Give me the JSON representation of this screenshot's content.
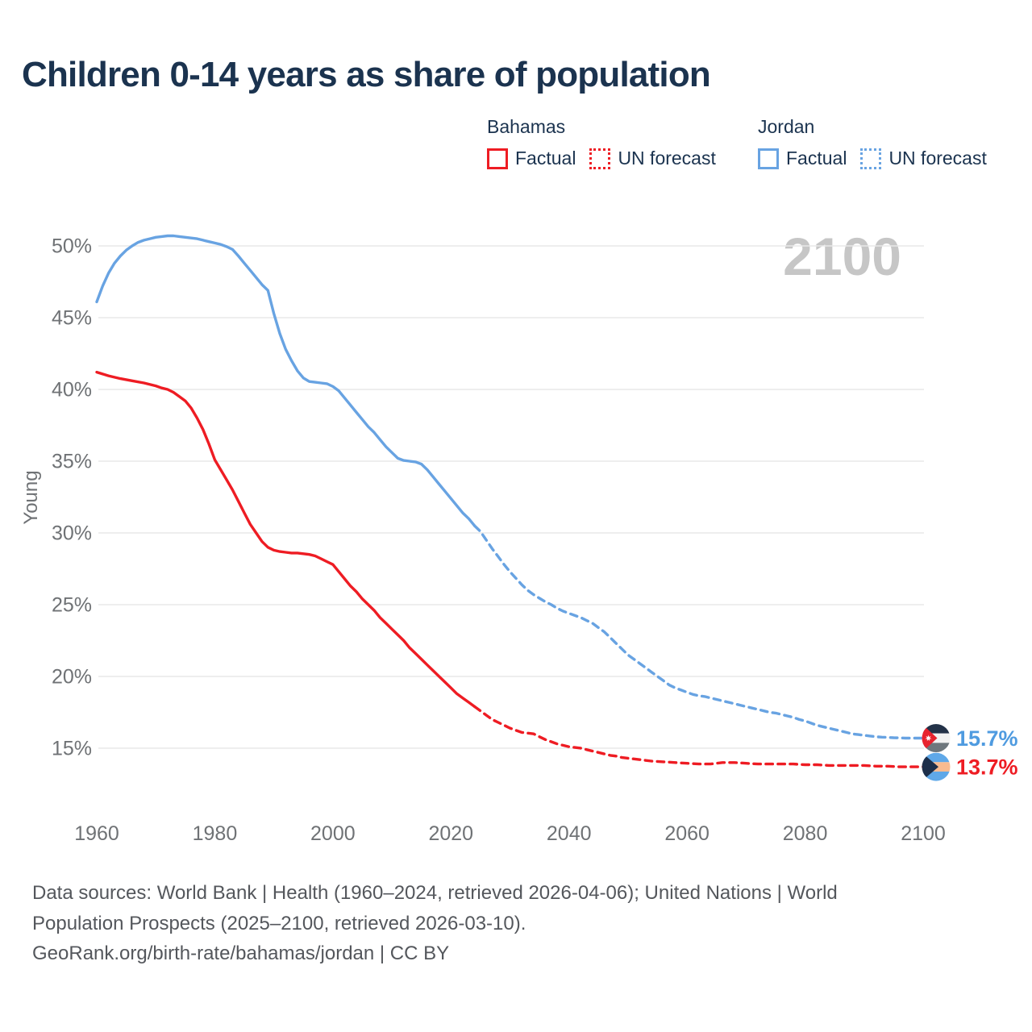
{
  "title": "Children 0-14 years as share of population",
  "colors": {
    "bahamas": "#ee1c23",
    "jordan": "#68a3e2",
    "jordan_label": "#4f9be0",
    "title_text": "#1b334f",
    "axis_text": "#6f7275",
    "grid": "#e9e9e9",
    "watermark": "#c6c6c6",
    "footer_text": "#54575c"
  },
  "legend": {
    "groups": [
      {
        "name": "Bahamas",
        "series_color": "bahamas",
        "items": [
          {
            "label": "Factual",
            "style": "solid"
          },
          {
            "label": "UN forecast",
            "style": "dotted"
          }
        ]
      },
      {
        "name": "Jordan",
        "series_color": "jordan",
        "items": [
          {
            "label": "Factual",
            "style": "solid"
          },
          {
            "label": "UN forecast",
            "style": "dotted"
          }
        ]
      }
    ]
  },
  "footer": {
    "line1": "Data sources: World Bank | Health (1960–2024, retrieved 2026-04-06); United Nations | World",
    "line2": "Population Prospects (2025–2100, retrieved 2026-03-10).",
    "line3": "GeoRank.org/birth-rate/bahamas/jordan | CC BY"
  },
  "chart_data": {
    "type": "line",
    "title": "Children 0-14 years as share of population",
    "xlabel": "",
    "ylabel": "Young",
    "watermark": "2100",
    "grid": true,
    "legend_position": "top-right",
    "x_range": [
      1960,
      2100
    ],
    "y_range": [
      15,
      50
    ],
    "x_ticks": [
      1960,
      1980,
      2000,
      2020,
      2040,
      2060,
      2080,
      2100
    ],
    "y_ticks": [
      {
        "value": 15,
        "label": "15%"
      },
      {
        "value": 20,
        "label": "20%"
      },
      {
        "value": 25,
        "label": "25%"
      },
      {
        "value": 30,
        "label": "30%"
      },
      {
        "value": 35,
        "label": "35%"
      },
      {
        "value": 40,
        "label": "40%"
      },
      {
        "value": 45,
        "label": "45%"
      },
      {
        "value": 50,
        "label": "50%"
      }
    ],
    "series": [
      {
        "id": "jordan-factual",
        "country": "Jordan",
        "kind": "Factual",
        "dashed": false,
        "color": "#68a3e2",
        "points": [
          [
            1960,
            46.1
          ],
          [
            1961,
            47.2
          ],
          [
            1962,
            48.1
          ],
          [
            1963,
            48.8
          ],
          [
            1964,
            49.3
          ],
          [
            1965,
            49.7
          ],
          [
            1966,
            50.0
          ],
          [
            1967,
            50.25
          ],
          [
            1968,
            50.4
          ],
          [
            1969,
            50.5
          ],
          [
            1970,
            50.6
          ],
          [
            1971,
            50.65
          ],
          [
            1972,
            50.7
          ],
          [
            1973,
            50.7
          ],
          [
            1974,
            50.65
          ],
          [
            1975,
            50.6
          ],
          [
            1976,
            50.55
          ],
          [
            1977,
            50.5
          ],
          [
            1978,
            50.4
          ],
          [
            1979,
            50.3
          ],
          [
            1980,
            50.2
          ],
          [
            1981,
            50.1
          ],
          [
            1982,
            49.95
          ],
          [
            1983,
            49.75
          ],
          [
            1984,
            49.3
          ],
          [
            1985,
            48.8
          ],
          [
            1986,
            48.3
          ],
          [
            1987,
            47.8
          ],
          [
            1988,
            47.3
          ],
          [
            1989,
            46.9
          ],
          [
            1990,
            45.3
          ],
          [
            1991,
            43.9
          ],
          [
            1992,
            42.8
          ],
          [
            1993,
            42.0
          ],
          [
            1994,
            41.3
          ],
          [
            1995,
            40.8
          ],
          [
            1996,
            40.55
          ],
          [
            1997,
            40.5
          ],
          [
            1998,
            40.45
          ],
          [
            1999,
            40.4
          ],
          [
            2000,
            40.2
          ],
          [
            2001,
            39.9
          ],
          [
            2002,
            39.4
          ],
          [
            2003,
            38.9
          ],
          [
            2004,
            38.4
          ],
          [
            2005,
            37.9
          ],
          [
            2006,
            37.4
          ],
          [
            2007,
            37.0
          ],
          [
            2008,
            36.5
          ],
          [
            2009,
            36.0
          ],
          [
            2010,
            35.6
          ],
          [
            2011,
            35.2
          ],
          [
            2012,
            35.05
          ],
          [
            2013,
            35.0
          ],
          [
            2014,
            34.95
          ],
          [
            2015,
            34.8
          ],
          [
            2016,
            34.4
          ],
          [
            2017,
            33.9
          ],
          [
            2018,
            33.4
          ],
          [
            2019,
            32.9
          ],
          [
            2020,
            32.4
          ],
          [
            2021,
            31.9
          ],
          [
            2022,
            31.4
          ],
          [
            2023,
            31.0
          ],
          [
            2024,
            30.5
          ]
        ]
      },
      {
        "id": "jordan-forecast",
        "country": "Jordan",
        "kind": "UN forecast",
        "dashed": true,
        "color": "#68a3e2",
        "points": [
          [
            2024,
            30.5
          ],
          [
            2025,
            30.1
          ],
          [
            2026,
            29.5
          ],
          [
            2027,
            28.9
          ],
          [
            2028,
            28.35
          ],
          [
            2029,
            27.8
          ],
          [
            2030,
            27.3
          ],
          [
            2031,
            26.85
          ],
          [
            2032,
            26.4
          ],
          [
            2033,
            26.0
          ],
          [
            2034,
            25.7
          ],
          [
            2035,
            25.45
          ],
          [
            2036,
            25.2
          ],
          [
            2037,
            25.0
          ],
          [
            2038,
            24.75
          ],
          [
            2039,
            24.55
          ],
          [
            2040,
            24.4
          ],
          [
            2041,
            24.25
          ],
          [
            2042,
            24.1
          ],
          [
            2043,
            23.9
          ],
          [
            2044,
            23.7
          ],
          [
            2045,
            23.4
          ],
          [
            2046,
            23.1
          ],
          [
            2047,
            22.7
          ],
          [
            2048,
            22.3
          ],
          [
            2049,
            21.9
          ],
          [
            2050,
            21.5
          ],
          [
            2051,
            21.2
          ],
          [
            2052,
            20.9
          ],
          [
            2053,
            20.6
          ],
          [
            2054,
            20.3
          ],
          [
            2055,
            20.0
          ],
          [
            2056,
            19.7
          ],
          [
            2057,
            19.4
          ],
          [
            2058,
            19.2
          ],
          [
            2059,
            19.05
          ],
          [
            2060,
            18.9
          ],
          [
            2061,
            18.75
          ],
          [
            2062,
            18.65
          ],
          [
            2063,
            18.6
          ],
          [
            2064,
            18.5
          ],
          [
            2065,
            18.4
          ],
          [
            2066,
            18.3
          ],
          [
            2067,
            18.2
          ],
          [
            2068,
            18.1
          ],
          [
            2069,
            18.0
          ],
          [
            2070,
            17.9
          ],
          [
            2071,
            17.8
          ],
          [
            2072,
            17.7
          ],
          [
            2073,
            17.6
          ],
          [
            2074,
            17.5
          ],
          [
            2075,
            17.45
          ],
          [
            2076,
            17.35
          ],
          [
            2077,
            17.25
          ],
          [
            2078,
            17.15
          ],
          [
            2079,
            17.0
          ],
          [
            2080,
            16.9
          ],
          [
            2081,
            16.75
          ],
          [
            2082,
            16.6
          ],
          [
            2083,
            16.5
          ],
          [
            2084,
            16.4
          ],
          [
            2085,
            16.3
          ],
          [
            2086,
            16.2
          ],
          [
            2087,
            16.1
          ],
          [
            2088,
            16.0
          ],
          [
            2089,
            15.95
          ],
          [
            2090,
            15.9
          ],
          [
            2091,
            15.85
          ],
          [
            2092,
            15.8
          ],
          [
            2093,
            15.77
          ],
          [
            2094,
            15.75
          ],
          [
            2095,
            15.73
          ],
          [
            2096,
            15.72
          ],
          [
            2097,
            15.7
          ],
          [
            2098,
            15.7
          ],
          [
            2099,
            15.7
          ],
          [
            2100,
            15.7
          ]
        ]
      },
      {
        "id": "bahamas-factual",
        "country": "Bahamas",
        "kind": "Factual",
        "dashed": false,
        "color": "#ee1c23",
        "points": [
          [
            1960,
            41.2
          ],
          [
            1962,
            40.95
          ],
          [
            1964,
            40.75
          ],
          [
            1966,
            40.6
          ],
          [
            1968,
            40.45
          ],
          [
            1970,
            40.25
          ],
          [
            1971,
            40.1
          ],
          [
            1972,
            40.0
          ],
          [
            1973,
            39.8
          ],
          [
            1974,
            39.5
          ],
          [
            1975,
            39.2
          ],
          [
            1976,
            38.7
          ],
          [
            1977,
            38.0
          ],
          [
            1978,
            37.2
          ],
          [
            1979,
            36.2
          ],
          [
            1980,
            35.1
          ],
          [
            1981,
            34.4
          ],
          [
            1982,
            33.7
          ],
          [
            1983,
            33.0
          ],
          [
            1984,
            32.2
          ],
          [
            1985,
            31.4
          ],
          [
            1986,
            30.6
          ],
          [
            1987,
            30.0
          ],
          [
            1988,
            29.4
          ],
          [
            1989,
            29.0
          ],
          [
            1990,
            28.8
          ],
          [
            1991,
            28.7
          ],
          [
            1992,
            28.65
          ],
          [
            1993,
            28.6
          ],
          [
            1994,
            28.6
          ],
          [
            1995,
            28.55
          ],
          [
            1996,
            28.5
          ],
          [
            1997,
            28.4
          ],
          [
            1998,
            28.2
          ],
          [
            1999,
            28.0
          ],
          [
            2000,
            27.8
          ],
          [
            2001,
            27.3
          ],
          [
            2002,
            26.8
          ],
          [
            2003,
            26.3
          ],
          [
            2004,
            25.9
          ],
          [
            2005,
            25.4
          ],
          [
            2006,
            25.0
          ],
          [
            2007,
            24.6
          ],
          [
            2008,
            24.1
          ],
          [
            2009,
            23.7
          ],
          [
            2010,
            23.3
          ],
          [
            2011,
            22.9
          ],
          [
            2012,
            22.5
          ],
          [
            2013,
            22.0
          ],
          [
            2014,
            21.6
          ],
          [
            2015,
            21.2
          ],
          [
            2016,
            20.8
          ],
          [
            2017,
            20.4
          ],
          [
            2018,
            20.0
          ],
          [
            2019,
            19.6
          ],
          [
            2020,
            19.2
          ],
          [
            2021,
            18.8
          ],
          [
            2022,
            18.5
          ],
          [
            2023,
            18.2
          ],
          [
            2024,
            17.9
          ]
        ]
      },
      {
        "id": "bahamas-forecast",
        "country": "Bahamas",
        "kind": "UN forecast",
        "dashed": true,
        "color": "#ee1c23",
        "points": [
          [
            2024,
            17.9
          ],
          [
            2025,
            17.6
          ],
          [
            2026,
            17.3
          ],
          [
            2027,
            17.0
          ],
          [
            2028,
            16.8
          ],
          [
            2029,
            16.6
          ],
          [
            2030,
            16.4
          ],
          [
            2031,
            16.25
          ],
          [
            2032,
            16.1
          ],
          [
            2033,
            16.05
          ],
          [
            2034,
            16.0
          ],
          [
            2035,
            15.8
          ],
          [
            2036,
            15.6
          ],
          [
            2037,
            15.45
          ],
          [
            2038,
            15.3
          ],
          [
            2039,
            15.2
          ],
          [
            2040,
            15.1
          ],
          [
            2041,
            15.05
          ],
          [
            2042,
            15.0
          ],
          [
            2043,
            14.9
          ],
          [
            2044,
            14.8
          ],
          [
            2045,
            14.7
          ],
          [
            2046,
            14.6
          ],
          [
            2047,
            14.5
          ],
          [
            2048,
            14.45
          ],
          [
            2049,
            14.35
          ],
          [
            2050,
            14.3
          ],
          [
            2052,
            14.2
          ],
          [
            2054,
            14.1
          ],
          [
            2056,
            14.05
          ],
          [
            2058,
            14.0
          ],
          [
            2060,
            13.95
          ],
          [
            2062,
            13.9
          ],
          [
            2064,
            13.9
          ],
          [
            2066,
            14.0
          ],
          [
            2068,
            14.0
          ],
          [
            2070,
            13.95
          ],
          [
            2072,
            13.9
          ],
          [
            2074,
            13.9
          ],
          [
            2076,
            13.9
          ],
          [
            2078,
            13.9
          ],
          [
            2080,
            13.85
          ],
          [
            2082,
            13.85
          ],
          [
            2084,
            13.8
          ],
          [
            2086,
            13.8
          ],
          [
            2088,
            13.8
          ],
          [
            2090,
            13.8
          ],
          [
            2092,
            13.75
          ],
          [
            2094,
            13.75
          ],
          [
            2096,
            13.7
          ],
          [
            2098,
            13.7
          ],
          [
            2100,
            13.7
          ]
        ]
      }
    ],
    "end_labels": [
      {
        "series": "Jordan",
        "text": "15.7%",
        "value": 15.7,
        "color": "#4f9be0",
        "flag": "jordan"
      },
      {
        "series": "Bahamas",
        "text": "13.7%",
        "value": 13.7,
        "color": "#ee1c23",
        "flag": "bahamas"
      }
    ]
  }
}
